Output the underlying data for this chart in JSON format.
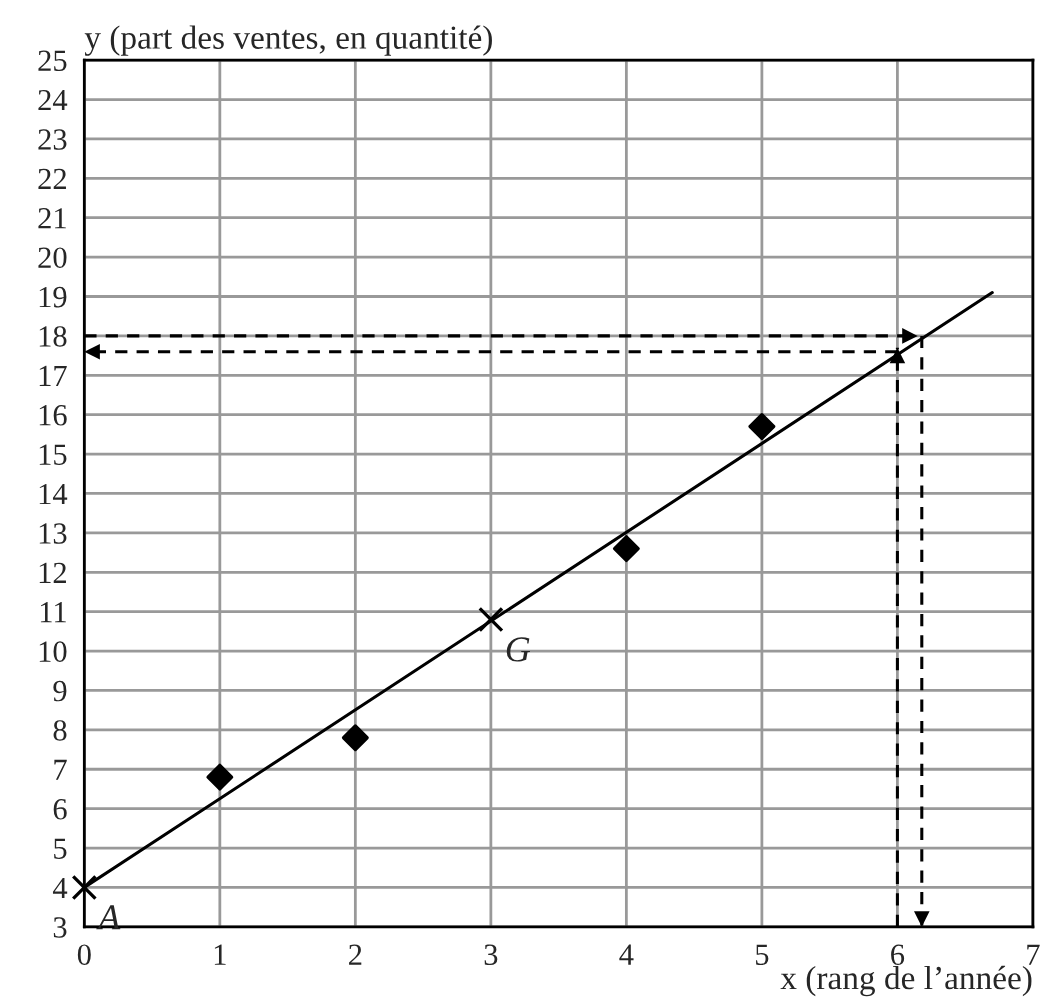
{
  "chart_data": {
    "type": "scatter",
    "xlabel": "x (rang de l’année)",
    "ylabel": "y (part des ventes, en quantité)",
    "xlim": [
      0,
      7
    ],
    "ylim": [
      3,
      25
    ],
    "xticks": [
      0,
      1,
      2,
      3,
      4,
      5,
      6,
      7
    ],
    "yticks": [
      3,
      4,
      5,
      6,
      7,
      8,
      9,
      10,
      11,
      12,
      13,
      14,
      15,
      16,
      17,
      18,
      19,
      20,
      21,
      22,
      23,
      24,
      25
    ],
    "grid": true,
    "series": [
      {
        "marker": "diamond",
        "color": "#000000",
        "x": [
          1,
          2,
          4,
          5
        ],
        "values": [
          6.8,
          7.8,
          12.6,
          15.7
        ]
      },
      {
        "type": "line",
        "line_style": "solid",
        "color": "#000000",
        "x": [
          0,
          6.7
        ],
        "values": [
          4,
          19.1
        ]
      },
      {
        "type": "scatter",
        "marker": "cross",
        "color": "#000000",
        "x": [
          0,
          3
        ],
        "values": [
          4,
          10.8
        ]
      },
      {
        "type": "line",
        "line_style": "dashed",
        "color": "#000000",
        "x": [
          6,
          6
        ],
        "values": [
          3,
          17.7
        ]
      },
      {
        "type": "line",
        "line_style": "dashed",
        "color": "#000000",
        "x": [
          6,
          0
        ],
        "values": [
          17.6,
          17.6
        ]
      },
      {
        "type": "line",
        "line_style": "dashed",
        "color": "#000000",
        "x": [
          0,
          6.15
        ],
        "values": [
          18,
          18
        ]
      },
      {
        "type": "line",
        "line_style": "dashed",
        "color": "#000000",
        "x": [
          6.18,
          6.18
        ],
        "values": [
          18,
          3
        ]
      }
    ],
    "annotations": [
      {
        "text": "A",
        "x": 0,
        "y": 4
      },
      {
        "text": "G",
        "x": 3,
        "y": 10.8
      }
    ]
  }
}
